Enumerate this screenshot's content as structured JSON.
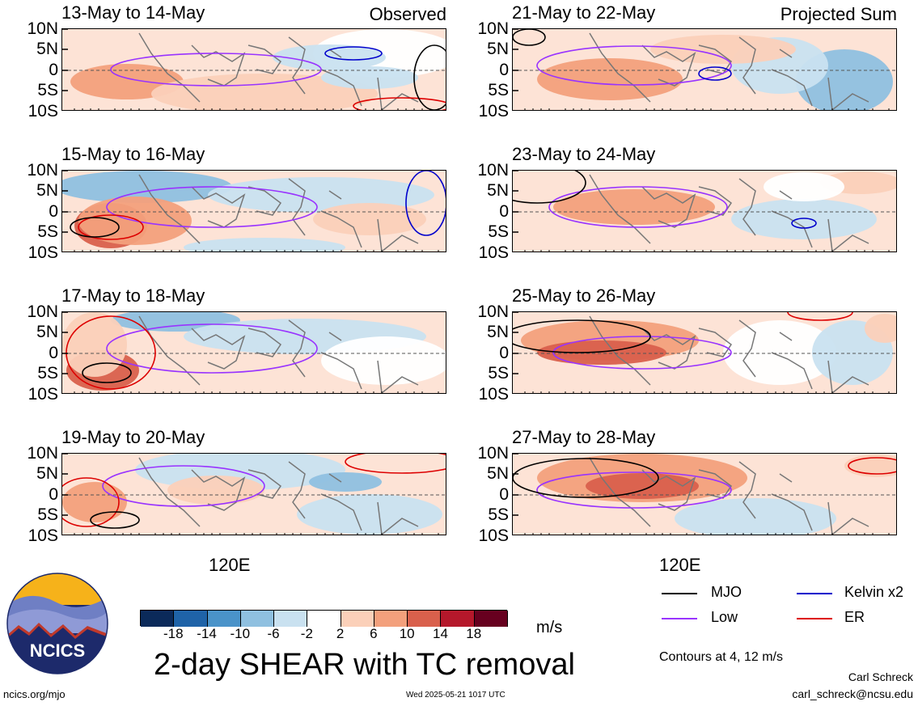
{
  "panels": [
    {
      "title": "13-May to 14-May",
      "tag": "Observed"
    },
    {
      "title": "21-May to 22-May",
      "tag": "Projected Sum"
    },
    {
      "title": "15-May to 16-May",
      "tag": ""
    },
    {
      "title": "23-May to 24-May",
      "tag": ""
    },
    {
      "title": "17-May to 18-May",
      "tag": ""
    },
    {
      "title": "25-May to 26-May",
      "tag": ""
    },
    {
      "title": "19-May to 20-May",
      "tag": ""
    },
    {
      "title": "27-May to 28-May",
      "tag": ""
    }
  ],
  "lat_labels": [
    "10N",
    "5N",
    "0",
    "5S",
    "10S"
  ],
  "xaxis": {
    "left_label": "120E",
    "right_label": "120E"
  },
  "legend": [
    {
      "label": "MJO",
      "color": "#000000"
    },
    {
      "label": "Kelvin x2",
      "color": "#0000cc"
    },
    {
      "label": "Low",
      "color": "#9933ff"
    },
    {
      "label": "ER",
      "color": "#dd0000"
    }
  ],
  "contours_note": "Contours at 4, 12 m/s",
  "colorbar": {
    "unit": "m/s",
    "ticks": [
      "-18",
      "-14",
      "-10",
      "-6",
      "-2",
      "2",
      "6",
      "10",
      "14",
      "18"
    ],
    "colors": [
      "#0b2a5a",
      "#1f63a8",
      "#4a93c9",
      "#8fc0e0",
      "#c9e1f0",
      "#ffffff",
      "#fbd0b9",
      "#f3a07c",
      "#d9604c",
      "#b5182b",
      "#67001f"
    ]
  },
  "main_title": "2-day SHEAR with TC removal",
  "logo_text": "NCICS",
  "footer": {
    "left": "ncics.org/mjo",
    "center": "Wed 2025-05-21 1017 UTC",
    "author": "Carl Schreck",
    "email": "carl_schreck@ncsu.edu"
  }
}
